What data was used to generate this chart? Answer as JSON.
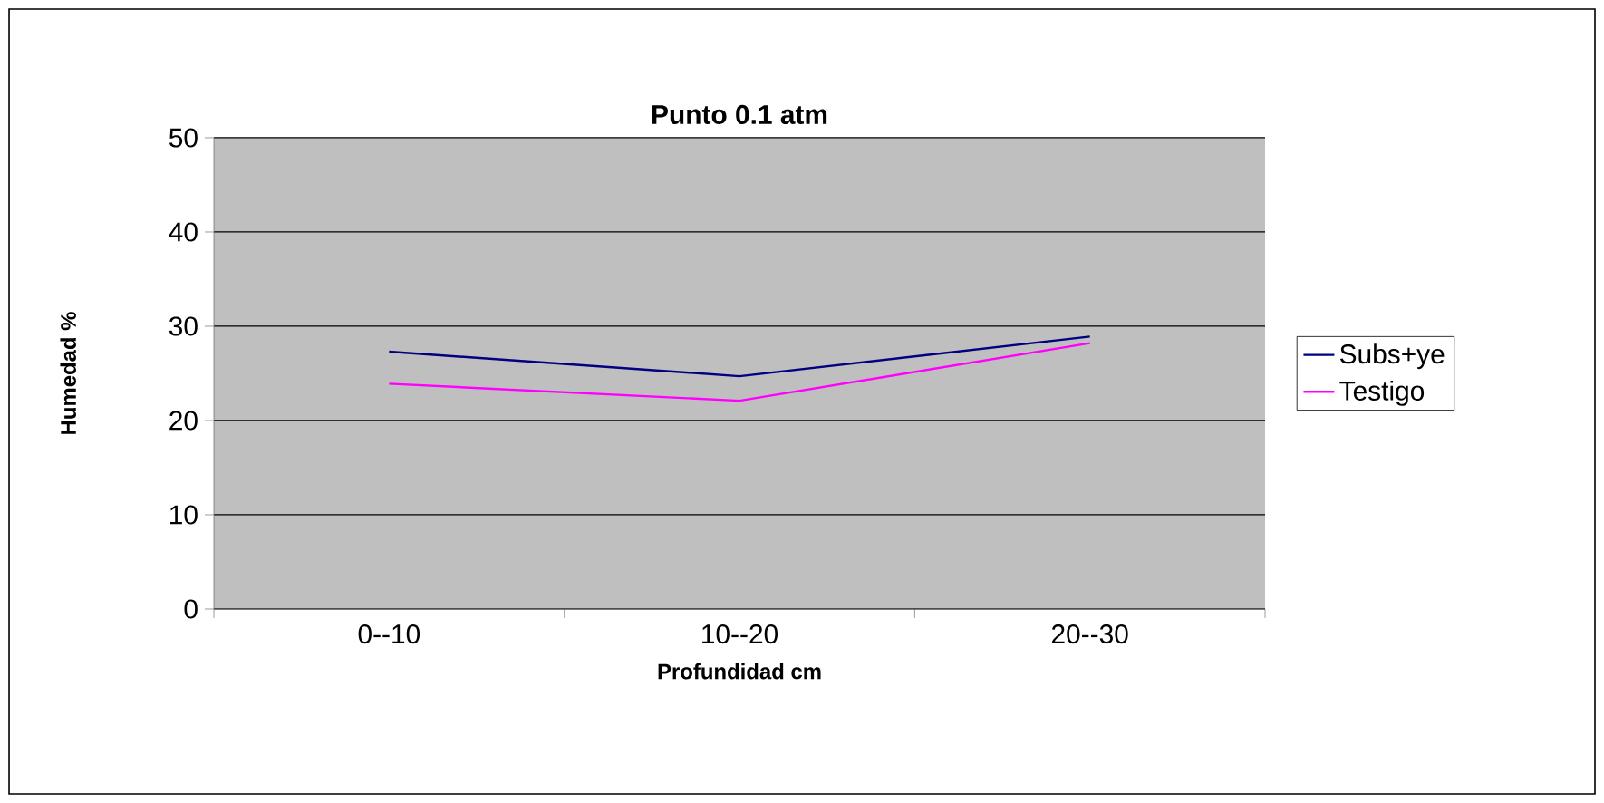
{
  "chart_data": {
    "type": "line",
    "title": "Punto  0.1 atm",
    "xlabel": "Profundidad  cm",
    "ylabel": "Humedad %",
    "categories": [
      "0--10",
      "10--20",
      "20--30"
    ],
    "series": [
      {
        "name": "Subs+ye",
        "color": "#000080",
        "values": [
          27.3,
          24.7,
          28.9
        ]
      },
      {
        "name": "Testigo",
        "color": "#ff00ff",
        "values": [
          23.9,
          22.1,
          28.2
        ]
      }
    ],
    "ylim": [
      0,
      50
    ],
    "yticks": [
      0,
      10,
      20,
      30,
      40,
      50
    ],
    "grid": "y",
    "legend": "right",
    "marker": "none",
    "line_style": "solid"
  }
}
